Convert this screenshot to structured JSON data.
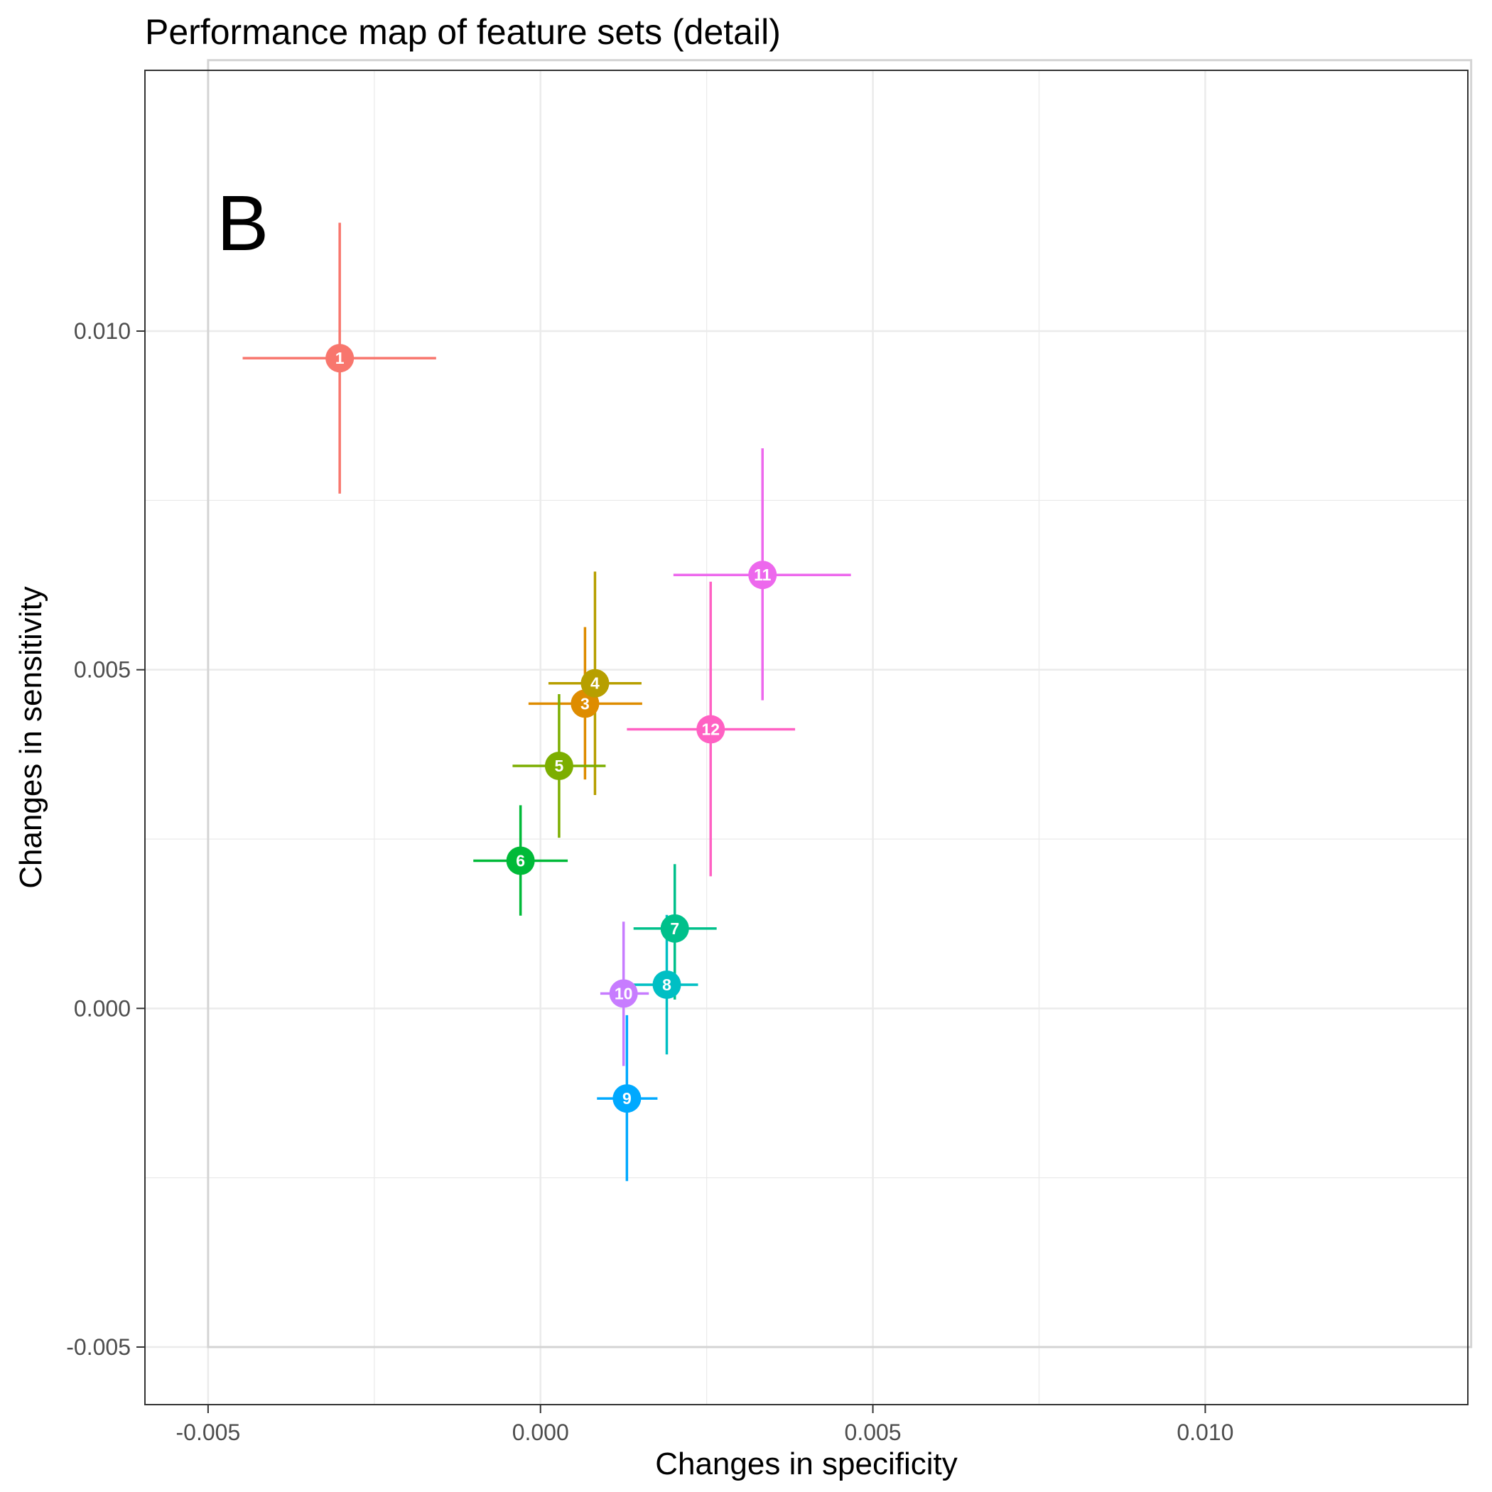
{
  "chart_data": {
    "type": "scatter",
    "title": "Performance map of feature sets (detail)",
    "xlabel": "Changes in specificity",
    "ylabel": "Changes in sensitivity",
    "panel_label": "B",
    "xlim": [
      -0.00595,
      0.01395
    ],
    "ylim": [
      -0.00585,
      0.01385
    ],
    "x_ticks": [
      -0.005,
      0.0,
      0.005,
      0.01
    ],
    "x_tick_labels": [
      "-0.005",
      "0.000",
      "0.005",
      "0.010"
    ],
    "y_ticks": [
      -0.005,
      0.0,
      0.005,
      0.01
    ],
    "y_tick_labels": [
      "-0.005",
      "0.000",
      "0.005",
      "0.010"
    ],
    "grid": true,
    "reference_box": {
      "x": [
        -0.005,
        0.014
      ],
      "y": [
        -0.005,
        0.014
      ],
      "color": "#d4d4d4"
    },
    "points": [
      {
        "label": "1",
        "x": -0.00302,
        "y": 0.0096,
        "xmin": -0.00448,
        "xmax": -0.00157,
        "ymin": 0.0076,
        "ymax": 0.0116,
        "color": "#F8766D"
      },
      {
        "label": "3",
        "x": 0.00067,
        "y": 0.0045,
        "xmin": -0.00018,
        "xmax": 0.00153,
        "ymin": 0.00338,
        "ymax": 0.00563,
        "color": "#DE8C00"
      },
      {
        "label": "4",
        "x": 0.00082,
        "y": 0.0048,
        "xmin": 0.00012,
        "xmax": 0.00152,
        "ymin": 0.00315,
        "ymax": 0.00645,
        "color": "#B79F00"
      },
      {
        "label": "5",
        "x": 0.00028,
        "y": 0.00358,
        "xmin": -0.00042,
        "xmax": 0.00098,
        "ymin": 0.00252,
        "ymax": 0.00464,
        "color": "#7CAE00"
      },
      {
        "label": "6",
        "x": -0.0003,
        "y": 0.00218,
        "xmin": -0.00101,
        "xmax": 0.00041,
        "ymin": 0.00137,
        "ymax": 0.003,
        "color": "#00BA38"
      },
      {
        "label": "7",
        "x": 0.00202,
        "y": 0.00118,
        "xmin": 0.0014,
        "xmax": 0.00265,
        "ymin": 0.00013,
        "ymax": 0.00213,
        "color": "#00C08B"
      },
      {
        "label": "8",
        "x": 0.0019,
        "y": 0.00035,
        "xmin": 0.00138,
        "xmax": 0.00237,
        "ymin": -0.00068,
        "ymax": 0.00138,
        "color": "#00BFC4"
      },
      {
        "label": "9",
        "x": 0.0013,
        "y": -0.00133,
        "xmin": 0.00085,
        "xmax": 0.00176,
        "ymin": -0.00255,
        "ymax": -0.0001,
        "color": "#00A9FF"
      },
      {
        "label": "10",
        "x": 0.00125,
        "y": 0.00022,
        "xmin": 0.0009,
        "xmax": 0.00163,
        "ymin": -0.00085,
        "ymax": 0.00128,
        "color": "#C77CFF"
      },
      {
        "label": "11",
        "x": 0.00334,
        "y": 0.0064,
        "xmin": 0.002,
        "xmax": 0.00467,
        "ymin": 0.00455,
        "ymax": 0.00827,
        "color": "#ED68ED"
      },
      {
        "label": "12",
        "x": 0.00256,
        "y": 0.00412,
        "xmin": 0.0013,
        "xmax": 0.00383,
        "ymin": 0.00195,
        "ymax": 0.0063,
        "color": "#FF61C3"
      }
    ]
  }
}
